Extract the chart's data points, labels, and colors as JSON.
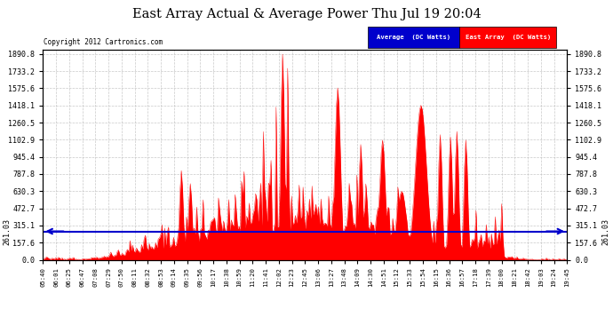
{
  "title": "East Array Actual & Average Power Thu Jul 19 20:04",
  "copyright": "Copyright 2012 Cartronics.com",
  "avg_value": 261.03,
  "y_max": 1890.8,
  "y_ticks": [
    0.0,
    157.6,
    315.1,
    472.7,
    630.3,
    787.8,
    945.4,
    1102.9,
    1260.5,
    1418.1,
    1575.6,
    1733.2,
    1890.8
  ],
  "avg_label": "Average  (DC Watts)",
  "east_label": "East Array  (DC Watts)",
  "avg_color": "#0000cc",
  "east_color": "#ff0000",
  "fill_color": "#ff0000",
  "bg_color": "#ffffff",
  "grid_color": "#bbbbbb",
  "plot_bg_color": "#ffffff",
  "x_labels": [
    "05:40",
    "06:01",
    "06:25",
    "06:47",
    "07:08",
    "07:29",
    "07:50",
    "08:11",
    "08:32",
    "08:53",
    "09:14",
    "09:35",
    "09:56",
    "10:17",
    "10:38",
    "10:59",
    "11:20",
    "11:41",
    "12:02",
    "12:23",
    "12:45",
    "13:06",
    "13:27",
    "13:48",
    "14:09",
    "14:30",
    "14:51",
    "15:12",
    "15:33",
    "15:54",
    "16:15",
    "16:36",
    "16:57",
    "17:18",
    "17:39",
    "18:00",
    "18:21",
    "18:42",
    "19:03",
    "19:24",
    "19:45"
  ],
  "left_label": "261.03",
  "right_label": "261.03"
}
